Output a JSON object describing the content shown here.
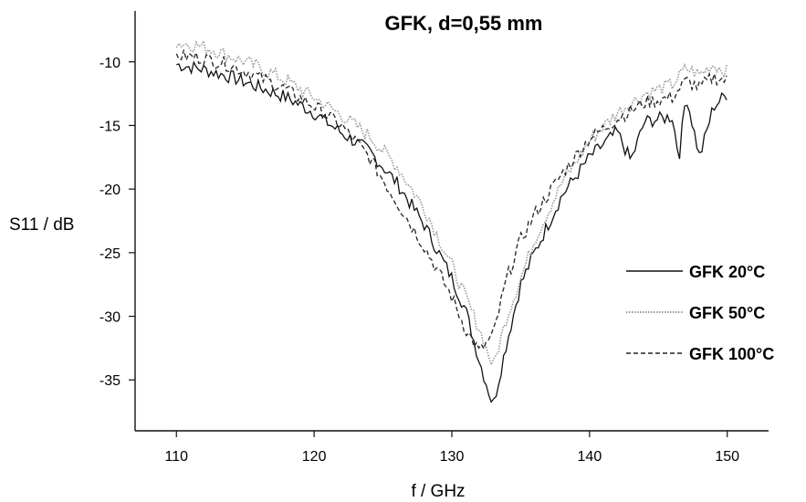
{
  "chart_data": {
    "type": "line",
    "title": "GFK, d=0,55 mm",
    "xlabel": "f / GHz",
    "ylabel": "S11 / dB",
    "xlim": [
      107,
      153
    ],
    "ylim": [
      -39,
      -6
    ],
    "xticks": [
      110,
      120,
      130,
      140,
      150
    ],
    "yticks": [
      -10,
      -15,
      -20,
      -25,
      -30,
      -35
    ],
    "grid": false,
    "legend_position": "right",
    "series": [
      {
        "name": "GFK 20°C",
        "line_style": "solid",
        "color": "#111111",
        "points": [
          [
            110,
            -10.2
          ],
          [
            112,
            -10.6
          ],
          [
            114,
            -11.2
          ],
          [
            116,
            -12.0
          ],
          [
            118,
            -12.8
          ],
          [
            120,
            -14.0
          ],
          [
            122,
            -15.6
          ],
          [
            124,
            -17.0
          ],
          [
            126,
            -19.5
          ],
          [
            128,
            -22.8
          ],
          [
            130,
            -27.0
          ],
          [
            131,
            -29.5
          ],
          [
            132,
            -33.5
          ],
          [
            133,
            -37.0
          ],
          [
            134,
            -32.0
          ],
          [
            135,
            -27.5
          ],
          [
            136,
            -25.0
          ],
          [
            138,
            -20.5
          ],
          [
            140,
            -17.5
          ],
          [
            142,
            -15.5
          ],
          [
            143,
            -17.8
          ],
          [
            144,
            -14.7
          ],
          [
            146,
            -14.3
          ],
          [
            146.5,
            -17.5
          ],
          [
            147,
            -12.5
          ],
          [
            148,
            -17.5
          ],
          [
            149,
            -13.5
          ],
          [
            150,
            -12.5
          ]
        ]
      },
      {
        "name": "GFK 50°C",
        "line_style": "dotted",
        "color": "#9a9a9a",
        "points": [
          [
            110,
            -8.5
          ],
          [
            112,
            -8.8
          ],
          [
            114,
            -9.6
          ],
          [
            116,
            -10.4
          ],
          [
            118,
            -11.5
          ],
          [
            120,
            -12.8
          ],
          [
            122,
            -14.2
          ],
          [
            124,
            -15.8
          ],
          [
            126,
            -18.2
          ],
          [
            128,
            -21.5
          ],
          [
            130,
            -26.0
          ],
          [
            131,
            -28.5
          ],
          [
            132,
            -31.0
          ],
          [
            133,
            -34.0
          ],
          [
            134,
            -30.0
          ],
          [
            135,
            -27.0
          ],
          [
            136,
            -24.0
          ],
          [
            138,
            -19.5
          ],
          [
            140,
            -16.2
          ],
          [
            142,
            -14.0
          ],
          [
            144,
            -12.5
          ],
          [
            146,
            -11.8
          ],
          [
            147,
            -10.5
          ],
          [
            148,
            -11.0
          ],
          [
            149,
            -10.2
          ],
          [
            150,
            -10.8
          ]
        ]
      },
      {
        "name": "GFK 100°C",
        "line_style": "dashed",
        "color": "#222222",
        "points": [
          [
            110,
            -9.5
          ],
          [
            112,
            -9.7
          ],
          [
            114,
            -10.3
          ],
          [
            116,
            -11.2
          ],
          [
            118,
            -12.2
          ],
          [
            120,
            -13.5
          ],
          [
            122,
            -15.0
          ],
          [
            124,
            -17.5
          ],
          [
            126,
            -21.0
          ],
          [
            128,
            -24.5
          ],
          [
            130,
            -28.5
          ],
          [
            131,
            -31.0
          ],
          [
            132,
            -32.8
          ],
          [
            133,
            -31.5
          ],
          [
            134,
            -27.0
          ],
          [
            135,
            -24.0
          ],
          [
            136,
            -22.0
          ],
          [
            138,
            -18.8
          ],
          [
            140,
            -16.0
          ],
          [
            142,
            -14.5
          ],
          [
            144,
            -13.2
          ],
          [
            146,
            -12.8
          ],
          [
            147,
            -11.5
          ],
          [
            148,
            -12.0
          ],
          [
            149,
            -11.2
          ],
          [
            150,
            -11.5
          ]
        ]
      }
    ]
  }
}
